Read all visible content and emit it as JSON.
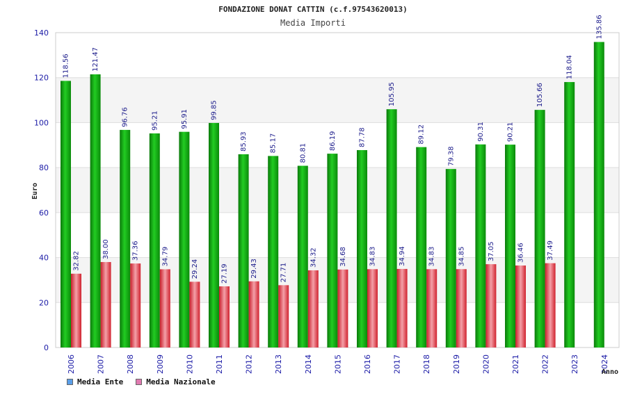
{
  "chart_data": {
    "type": "bar",
    "title": "FONDAZIONE DONAT CATTIN (c.f.97543620013)",
    "subtitle": "Media Importi",
    "xlabel": "Anno",
    "ylabel": "Euro",
    "ylim": [
      0,
      140
    ],
    "yticks": [
      0,
      20,
      40,
      60,
      80,
      100,
      120,
      140
    ],
    "categories": [
      "2006",
      "2007",
      "2008",
      "2009",
      "2010",
      "2011",
      "2012",
      "2013",
      "2014",
      "2015",
      "2016",
      "2017",
      "2018",
      "2019",
      "2020",
      "2021",
      "2022",
      "2023",
      "2024"
    ],
    "series": [
      {
        "name": "Media Ente",
        "color": "#0fa80f",
        "legend_color": "#5a9ee8",
        "values": [
          118.56,
          121.47,
          96.76,
          95.21,
          95.91,
          99.85,
          85.93,
          85.17,
          80.81,
          86.19,
          87.78,
          105.95,
          89.12,
          79.38,
          90.31,
          90.21,
          105.66,
          118.04,
          135.86
        ],
        "labels": [
          "118.56",
          "121.47",
          "96.76",
          "95.21",
          "95.91",
          "99.85",
          "85.93",
          "85.17",
          "80.81",
          "86.19",
          "87.78",
          "105.95",
          "89.12",
          "79.38",
          "90.31",
          "90.21",
          "105.66",
          "118.04",
          "135.86"
        ]
      },
      {
        "name": "Media Nazionale",
        "color": "#e0303a",
        "legend_color": "#e07ab0",
        "values": [
          32.82,
          38.0,
          37.36,
          34.79,
          29.24,
          27.19,
          29.43,
          27.71,
          34.32,
          34.68,
          34.83,
          34.94,
          34.83,
          34.85,
          37.05,
          36.46,
          37.49,
          null,
          null
        ],
        "labels": [
          "32.82",
          "38.00",
          "37.36",
          "34.79",
          "29.24",
          "27.19",
          "29.43",
          "27.71",
          "34.32",
          "34.68",
          "34.83",
          "34.94",
          "34.83",
          "34.85",
          "37.05",
          "36.46",
          "37.49",
          null,
          null
        ]
      }
    ],
    "grid": true,
    "legend_position": "bottom-left"
  }
}
